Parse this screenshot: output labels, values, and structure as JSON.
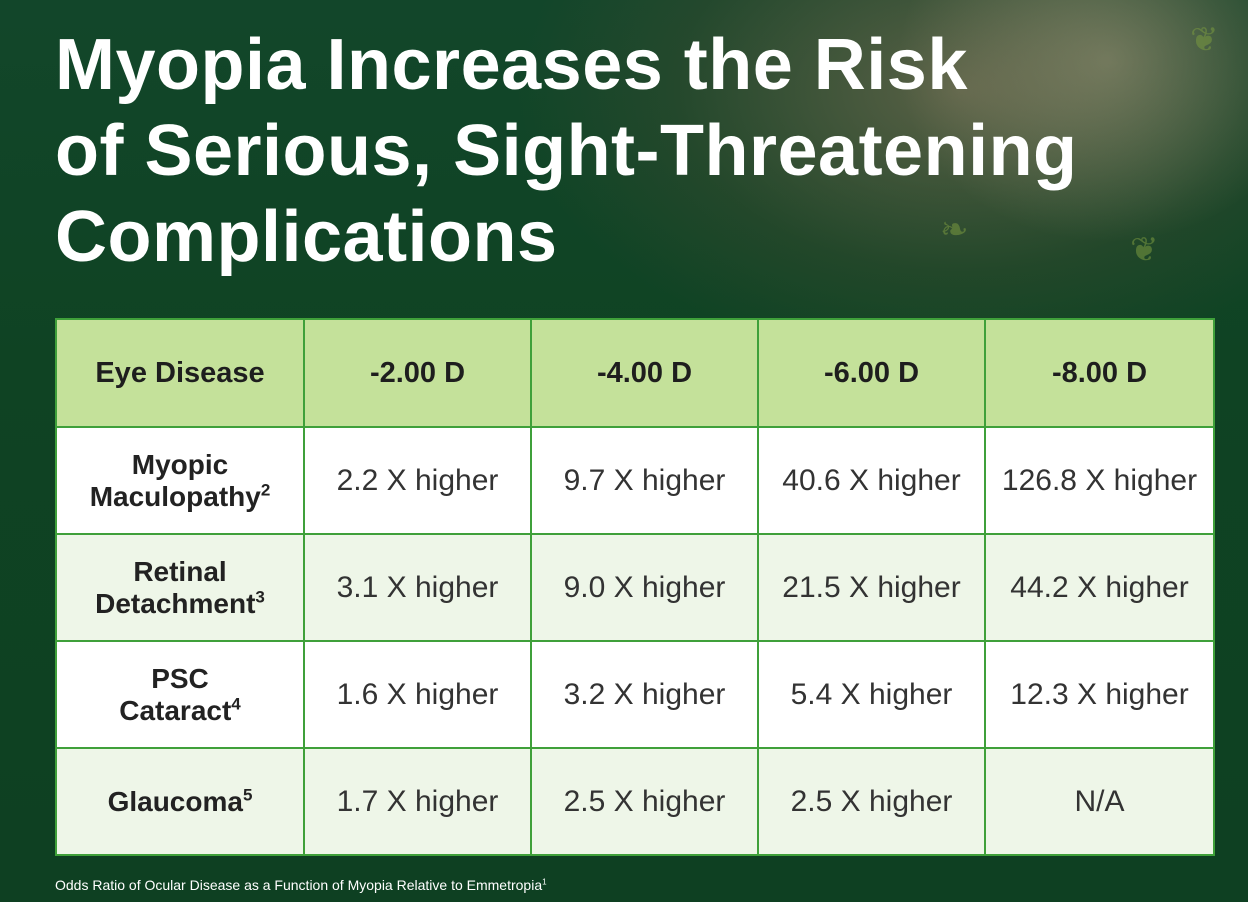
{
  "title": {
    "line1": "Myopia Increases the Risk",
    "line2": "of Serious, Sight-Threatening",
    "line3": "Complications"
  },
  "table": {
    "headers": [
      "Eye Disease",
      "-2.00 D",
      "-4.00 D",
      "-6.00 D",
      "-8.00 D"
    ],
    "rows": [
      {
        "line1": "Myopic",
        "line2": "Maculopathy",
        "ref": "2",
        "values": [
          "2.2 X higher",
          "9.7 X higher",
          "40.6 X higher",
          "126.8 X higher"
        ]
      },
      {
        "line1": "Retinal",
        "line2": "Detachment",
        "ref": "3",
        "values": [
          "3.1 X higher",
          "9.0 X higher",
          "21.5 X higher",
          "44.2 X higher"
        ]
      },
      {
        "line1": "PSC",
        "line2": "Cataract",
        "ref": "4",
        "values": [
          "1.6 X higher",
          "3.2 X higher",
          "5.4 X higher",
          "12.3 X higher"
        ]
      },
      {
        "line1": "",
        "line2": "Glaucoma",
        "ref": "5",
        "values": [
          "1.7 X higher",
          "2.5 X higher",
          "2.5 X higher",
          "N/A"
        ]
      }
    ]
  },
  "footnote": {
    "text": "Odds Ratio of Ocular Disease as a Function of Myopia Relative to Emmetropia",
    "ref": "1"
  },
  "colors": {
    "background": "#0f4323",
    "header_fill": "#c4e19a",
    "border": "#3fa03a"
  }
}
